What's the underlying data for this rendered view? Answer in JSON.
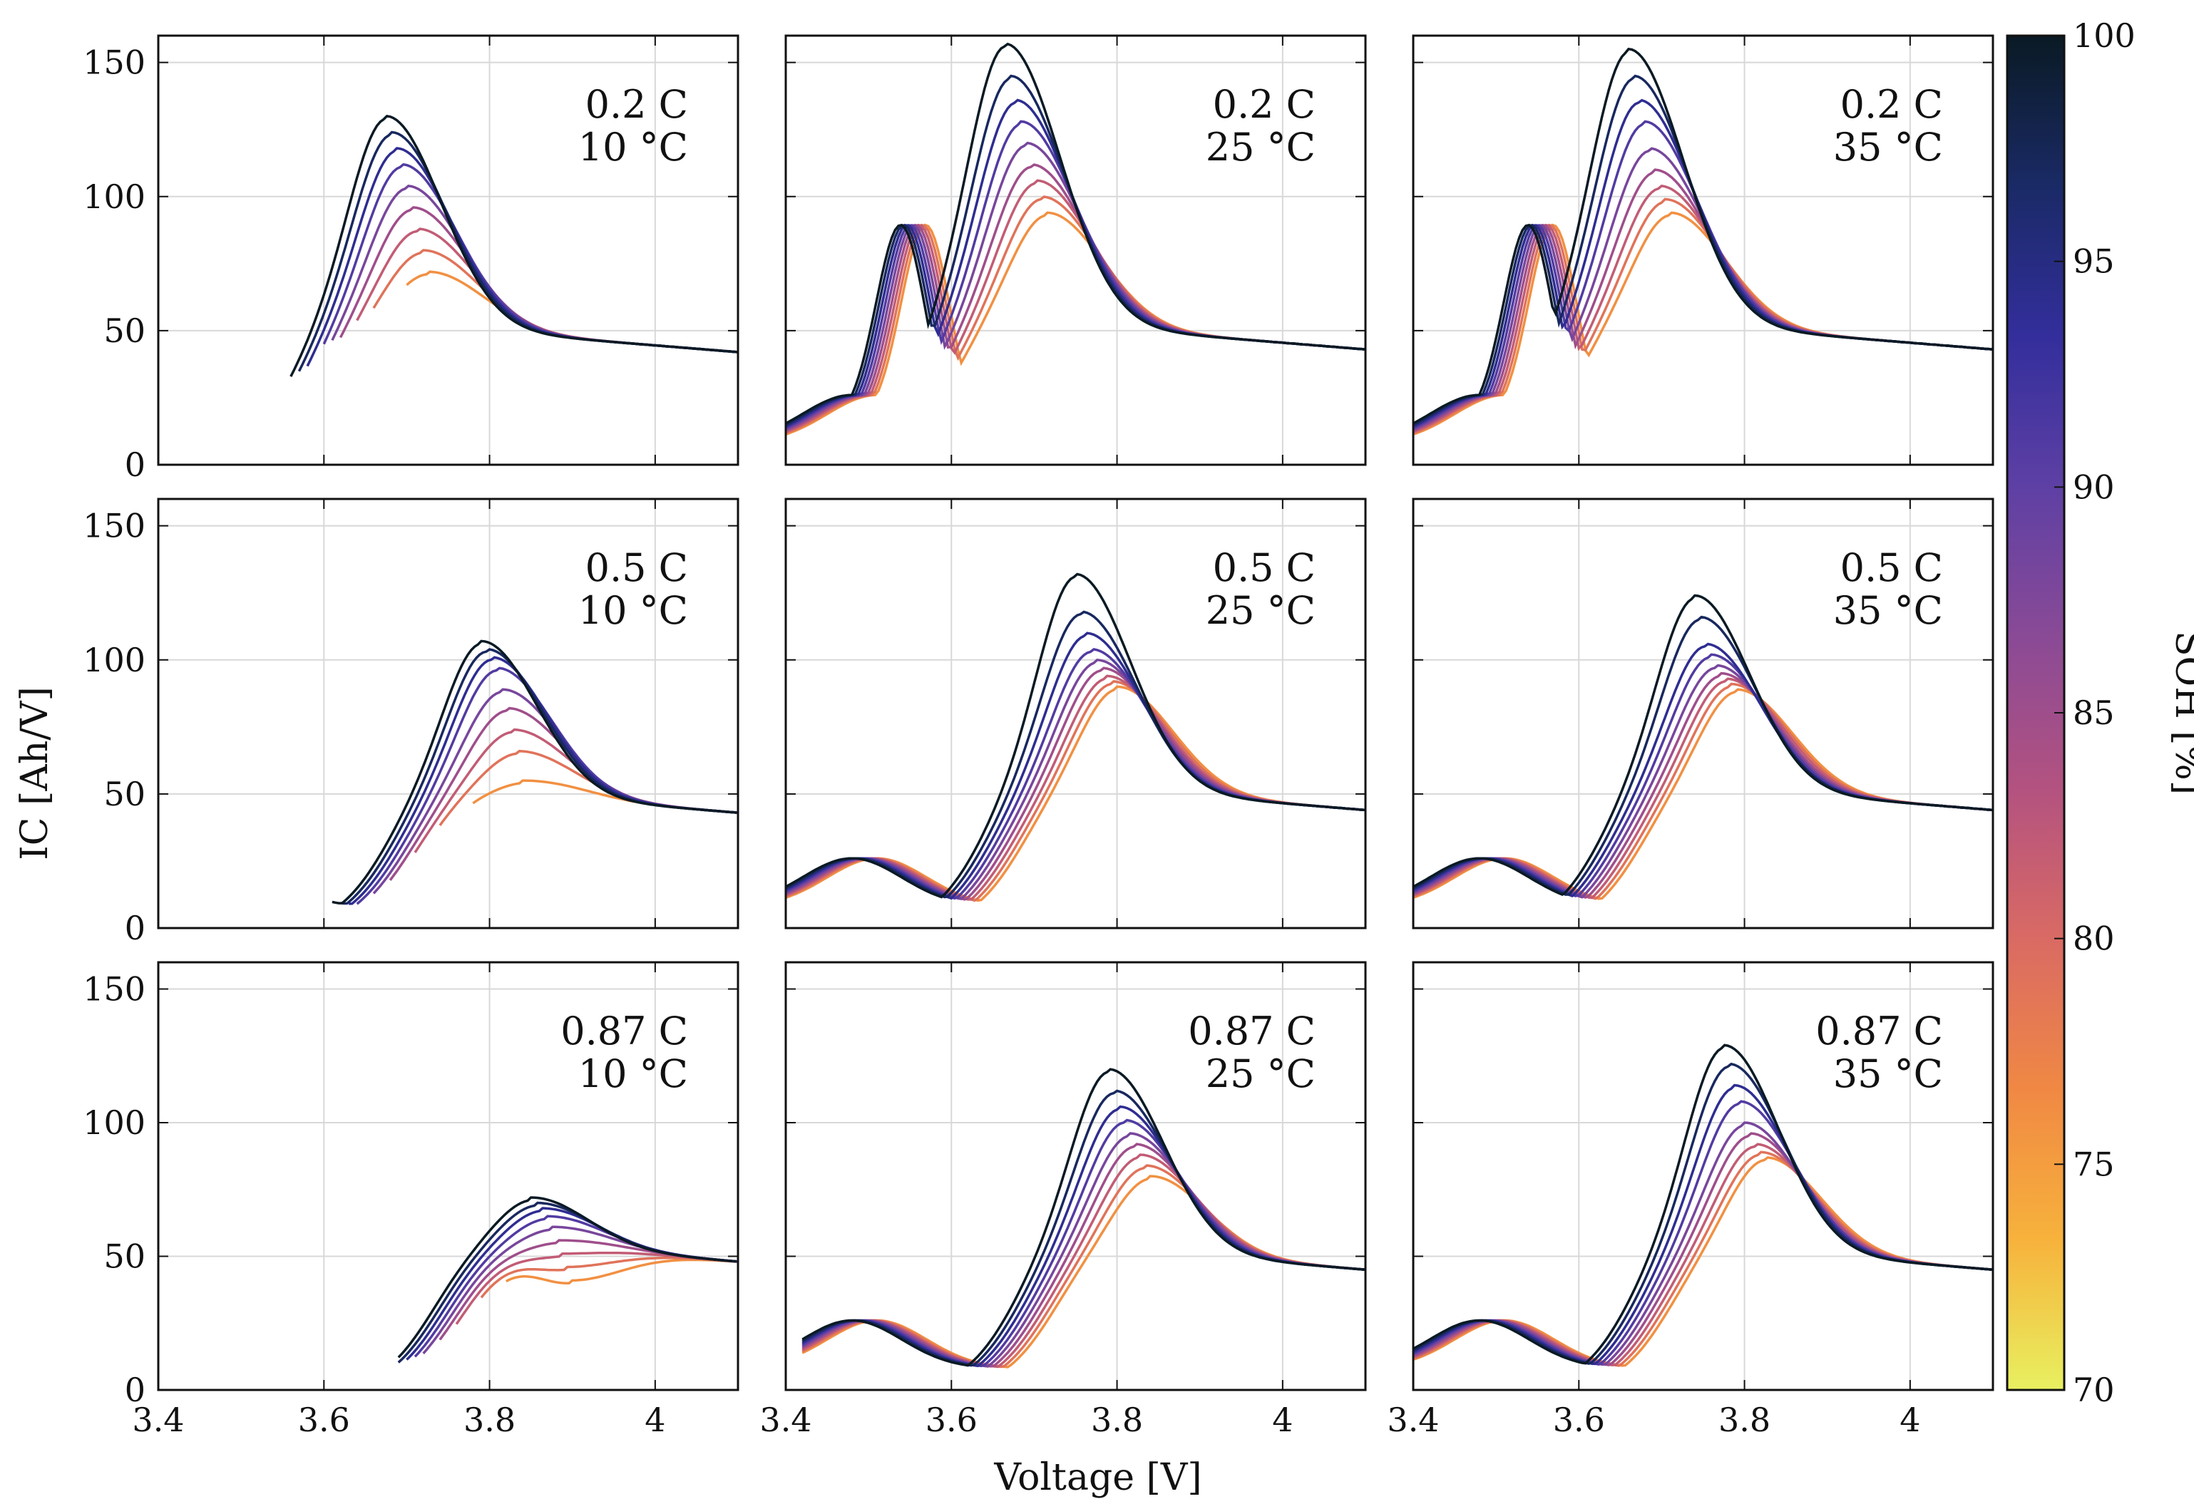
{
  "chart_data": {
    "type": "line",
    "title": "",
    "xlabel": "Voltage [V]",
    "ylabel": "IC [Ah/V]",
    "xlim": [
      3.4,
      4.1
    ],
    "ylim": [
      0,
      160
    ],
    "x_ticks": [
      "3.4",
      "3.6",
      "3.8",
      "4"
    ],
    "y_ticks": [
      "0",
      "50",
      "100",
      "150"
    ],
    "grid": true,
    "colorbar": {
      "label": "SOH [%]",
      "range": [
        70,
        100
      ],
      "ticks": [
        "70",
        "75",
        "80",
        "85",
        "90",
        "95",
        "100"
      ],
      "colormap": [
        "#e8f060",
        "#f7b23c",
        "#f08844",
        "#d96a64",
        "#b35280",
        "#8a4a96",
        "#5e40a4",
        "#332e9c",
        "#1a2a66",
        "#0a1a24"
      ]
    },
    "soh_levels": [
      100,
      97,
      94,
      91,
      88,
      85,
      82,
      79,
      76
    ],
    "panels": [
      {
        "label_rate": "0.2 C",
        "label_temp": "10 °C",
        "peaks": [
          130,
          124,
          118,
          112,
          104,
          96,
          88,
          80,
          72
        ],
        "peak_voltage_start": 3.675,
        "start_voltage": [
          3.56,
          3.57,
          3.58,
          3.6,
          3.61,
          3.62,
          3.64,
          3.66,
          3.7
        ],
        "end_value": 42
      },
      {
        "label_rate": "0.2 C",
        "label_temp": "25 °C",
        "peaks": [
          157,
          145,
          136,
          128,
          120,
          112,
          106,
          100,
          94
        ],
        "peak_voltage_start": 3.665,
        "start_voltage": [
          3.4,
          3.4,
          3.4,
          3.4,
          3.4,
          3.4,
          3.4,
          3.4,
          3.4
        ],
        "end_value": 43
      },
      {
        "label_rate": "0.2 C",
        "label_temp": "35 °C",
        "peaks": [
          155,
          145,
          136,
          128,
          118,
          110,
          104,
          99,
          94
        ],
        "peak_voltage_start": 3.66,
        "start_voltage": [
          3.4,
          3.4,
          3.4,
          3.4,
          3.4,
          3.4,
          3.4,
          3.4,
          3.4
        ],
        "end_value": 43
      },
      {
        "label_rate": "0.5 C",
        "label_temp": "10 °C",
        "peaks": [
          107,
          104,
          101,
          97,
          89,
          82,
          74,
          66,
          55
        ],
        "peak_voltage_start": 3.79,
        "start_voltage": [
          3.61,
          3.62,
          3.63,
          3.64,
          3.66,
          3.68,
          3.71,
          3.74,
          3.78
        ],
        "end_value": 43
      },
      {
        "label_rate": "0.5 C",
        "label_temp": "25 °C",
        "peaks": [
          132,
          118,
          110,
          104,
          100,
          97,
          94,
          92,
          90
        ],
        "peak_voltage_start": 3.75,
        "start_voltage": [
          3.4,
          3.4,
          3.4,
          3.4,
          3.4,
          3.4,
          3.4,
          3.4,
          3.4
        ],
        "end_value": 44
      },
      {
        "label_rate": "0.5 C",
        "label_temp": "35 °C",
        "peaks": [
          124,
          116,
          106,
          102,
          98,
          95,
          93,
          91,
          89
        ],
        "peak_voltage_start": 3.74,
        "start_voltage": [
          3.4,
          3.4,
          3.4,
          3.4,
          3.4,
          3.4,
          3.4,
          3.4,
          3.4
        ],
        "end_value": 44
      },
      {
        "label_rate": "0.87 C",
        "label_temp": "10 °C",
        "peaks": [
          72,
          70,
          68,
          65,
          61,
          56,
          51,
          46,
          41
        ],
        "peak_voltage_start": 3.85,
        "start_voltage": [
          3.69,
          3.69,
          3.7,
          3.71,
          3.72,
          3.74,
          3.76,
          3.79,
          3.82
        ],
        "end_value": 48
      },
      {
        "label_rate": "0.87 C",
        "label_temp": "25 °C",
        "peaks": [
          120,
          112,
          106,
          101,
          96,
          92,
          88,
          84,
          80
        ],
        "peak_voltage_start": 3.79,
        "start_voltage": [
          3.42,
          3.42,
          3.42,
          3.42,
          3.42,
          3.42,
          3.42,
          3.42,
          3.42
        ],
        "end_value": 45
      },
      {
        "label_rate": "0.87 C",
        "label_temp": "35 °C",
        "peaks": [
          129,
          122,
          114,
          108,
          100,
          96,
          92,
          89,
          87
        ],
        "peak_voltage_start": 3.775,
        "start_voltage": [
          3.4,
          3.4,
          3.4,
          3.4,
          3.4,
          3.4,
          3.4,
          3.4,
          3.4
        ],
        "end_value": 45
      }
    ]
  }
}
